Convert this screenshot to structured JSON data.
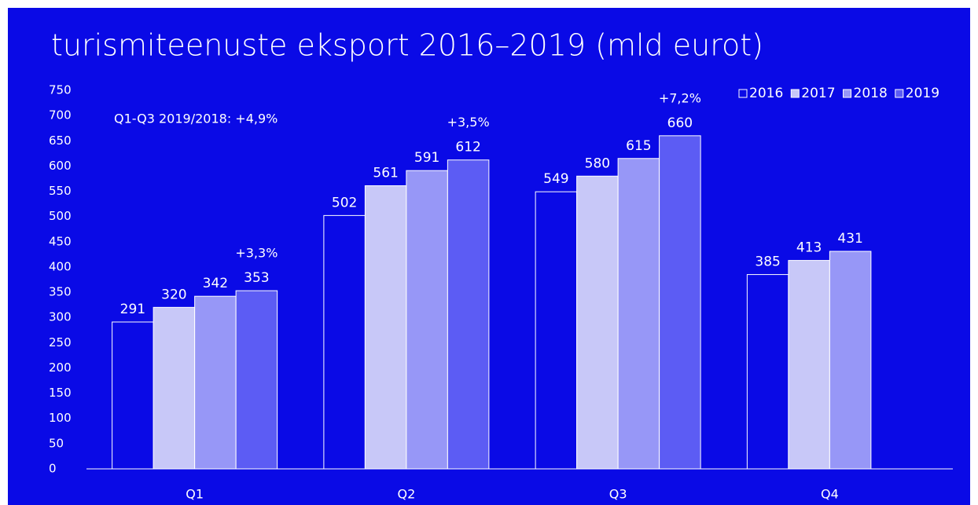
{
  "chart_data": {
    "type": "bar",
    "title": "turismiteenuste eksport 2016–2019 (mld eurot)",
    "categories": [
      "Q1",
      "Q2",
      "Q3",
      "Q4"
    ],
    "series": [
      {
        "name": "2016",
        "color": "#0a0ae6",
        "values": [
          291,
          502,
          549,
          385
        ]
      },
      {
        "name": "2017",
        "color": "#c8c8f8",
        "values": [
          320,
          561,
          580,
          413
        ]
      },
      {
        "name": "2018",
        "color": "#9797f7",
        "values": [
          342,
          591,
          615,
          431
        ]
      },
      {
        "name": "2019",
        "color": "#5c5cf4",
        "values": [
          353,
          612,
          660,
          null
        ]
      }
    ],
    "annotations": [
      "Q1-Q3 2019/2018: +4,9%",
      "+3,3%",
      "+3,5%",
      "+7,2%"
    ],
    "ylim": [
      0,
      750
    ],
    "yticks": [
      0,
      50,
      100,
      150,
      200,
      250,
      300,
      350,
      400,
      450,
      500,
      550,
      600,
      650,
      700,
      750
    ],
    "grid": false,
    "legend": "top-right",
    "background": "#0a0ae6"
  }
}
